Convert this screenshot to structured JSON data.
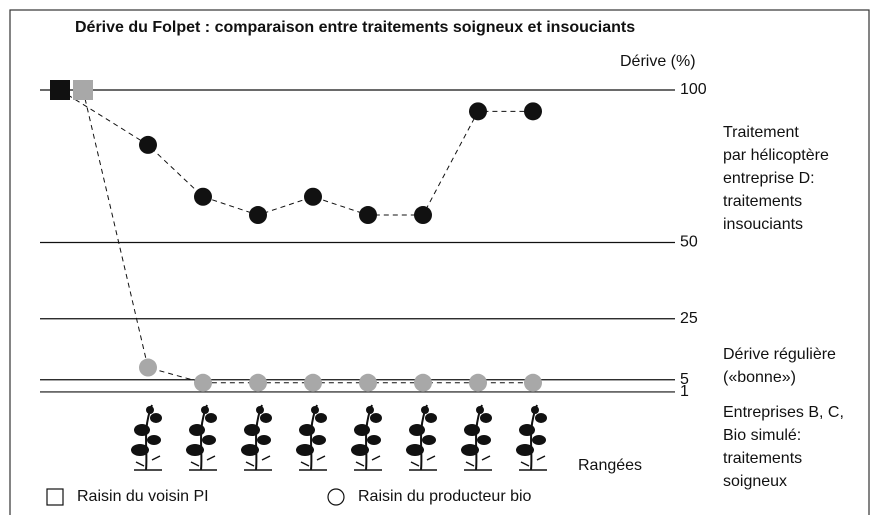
{
  "chart_data": {
    "type": "line",
    "title": "Dérive du Folpet : comparaison entre traitements soigneux et insouciants",
    "y_label": "Dérive (%)",
    "x_label": "Rangées",
    "ylim": [
      0,
      100
    ],
    "yticks": [
      1,
      5,
      25,
      50,
      100
    ],
    "grid": true,
    "series": [
      {
        "color": "#111111",
        "values": [
          100,
          82,
          65,
          59,
          65,
          59,
          59,
          93,
          93
        ]
      },
      {
        "color": "#a8a8a8",
        "values": [
          100,
          9,
          4,
          4,
          4,
          4,
          4,
          4,
          4
        ]
      }
    ],
    "annotations": [
      {
        "lines": [
          "Traitement",
          "par hélicoptère",
          "entreprise D:",
          "traitements",
          "insouciants"
        ]
      },
      {
        "lines": [
          "Dérive régulière",
          "(«bonne»)"
        ]
      },
      {
        "lines": [
          "Entreprises B, C,",
          "Bio simulé:",
          "traitements",
          "soigneux"
        ]
      }
    ],
    "legend": [
      {
        "label": "Raisin du voisin PI",
        "shape": "square"
      },
      {
        "label": "Raisin du producteur bio",
        "shape": "circle"
      }
    ]
  }
}
